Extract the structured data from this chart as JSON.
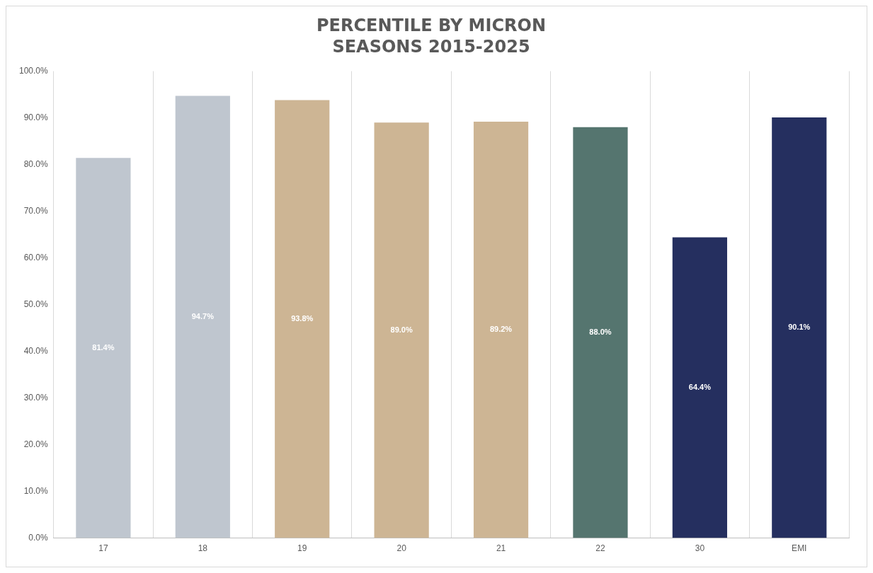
{
  "chart_data": {
    "type": "bar",
    "title": "PERCENTILE BY MICRON",
    "subtitle": "SEASONS 2015-2025",
    "categories": [
      "17",
      "18",
      "19",
      "20",
      "21",
      "22",
      "30",
      "EMI"
    ],
    "values": [
      81.4,
      94.7,
      93.8,
      89.0,
      89.2,
      88.0,
      64.4,
      90.1
    ],
    "colors": [
      "#bfc6cf",
      "#bfc6cf",
      "#cdb594",
      "#cdb594",
      "#cdb594",
      "#55756f",
      "#252f5f",
      "#252f5f"
    ],
    "value_labels": [
      "81.4%",
      "94.7%",
      "93.8%",
      "89.0%",
      "89.2%",
      "88.0%",
      "64.4%",
      "90.1%"
    ],
    "ylim": [
      0,
      100
    ],
    "yticks": [
      {
        "value": 0,
        "label": "0.0%"
      },
      {
        "value": 10,
        "label": "10.0%"
      },
      {
        "value": 20,
        "label": "20.0%"
      },
      {
        "value": 30,
        "label": "30.0%"
      },
      {
        "value": 40,
        "label": "40.0%"
      },
      {
        "value": 50,
        "label": "50.0%"
      },
      {
        "value": 60,
        "label": "60.0%"
      },
      {
        "value": 70,
        "label": "70.0%"
      },
      {
        "value": 80,
        "label": "80.0%"
      },
      {
        "value": 90,
        "label": "90.0%"
      },
      {
        "value": 100,
        "label": "100.0%"
      }
    ],
    "grid": "x",
    "legend": false
  }
}
